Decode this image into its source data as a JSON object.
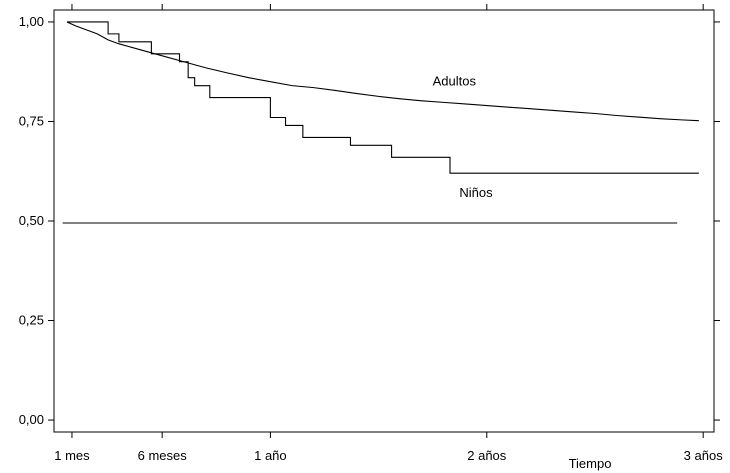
{
  "chart_data": {
    "type": "line",
    "title": "",
    "xlabel": "Tiempo",
    "ylabel": "",
    "xlim": [
      0,
      3.05
    ],
    "ylim": [
      -0.03,
      1.03
    ],
    "x_ticks": [
      {
        "value": 0.083,
        "label": "1 mes"
      },
      {
        "value": 0.5,
        "label": "6 meses"
      },
      {
        "value": 1,
        "label": "1 año"
      },
      {
        "value": 2,
        "label": "2 años"
      },
      {
        "value": 3,
        "label": "3 años"
      }
    ],
    "y_ticks": [
      {
        "value": 0,
        "label": "0,00"
      },
      {
        "value": 0.25,
        "label": "0,25"
      },
      {
        "value": 0.5,
        "label": "0,50"
      },
      {
        "value": 0.75,
        "label": "0,75"
      },
      {
        "value": 1,
        "label": "1,00"
      }
    ],
    "grid": false,
    "legend": "none",
    "series": [
      {
        "name": "Adultos",
        "label_position": [
          1.85,
          0.84
        ],
        "x": [
          0.06,
          0.1,
          0.15,
          0.2,
          0.25,
          0.3,
          0.4,
          0.5,
          0.6,
          0.7,
          0.8,
          0.9,
          1.0,
          1.1,
          1.2,
          1.3,
          1.4,
          1.5,
          1.6,
          1.7,
          1.8,
          1.9,
          2.0,
          2.1,
          2.2,
          2.3,
          2.4,
          2.5,
          2.6,
          2.7,
          2.8,
          2.9,
          2.98
        ],
        "y": [
          1.0,
          0.99,
          0.98,
          0.97,
          0.955,
          0.945,
          0.93,
          0.915,
          0.9,
          0.885,
          0.872,
          0.86,
          0.85,
          0.84,
          0.835,
          0.828,
          0.82,
          0.813,
          0.807,
          0.802,
          0.798,
          0.794,
          0.79,
          0.786,
          0.782,
          0.778,
          0.774,
          0.77,
          0.765,
          0.761,
          0.757,
          0.754,
          0.752
        ]
      },
      {
        "name": "Niños",
        "label_position": [
          1.95,
          0.56
        ],
        "step": true,
        "x": [
          0.06,
          0.25,
          0.3,
          0.45,
          0.58,
          0.62,
          0.65,
          0.72,
          1.0,
          1.07,
          1.15,
          1.18,
          1.37,
          1.56,
          1.83,
          2.98
        ],
        "y": [
          1.0,
          0.97,
          0.95,
          0.92,
          0.9,
          0.86,
          0.84,
          0.81,
          0.76,
          0.74,
          0.71,
          0.71,
          0.69,
          0.66,
          0.62,
          0.62
        ]
      },
      {
        "name": "",
        "x": [
          0.04,
          2.88
        ],
        "y": [
          0.495,
          0.495
        ]
      }
    ]
  }
}
